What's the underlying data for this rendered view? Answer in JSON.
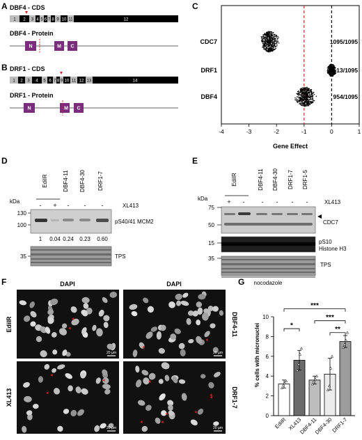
{
  "panel_letters": [
    "A",
    "B",
    "C",
    "D",
    "E",
    "F",
    "G"
  ],
  "panelA": {
    "cds_title": "DBF4 - CDS",
    "protein_title": "DBF4 - Protein",
    "exons": [
      "1",
      "2",
      "3",
      "4",
      "5",
      "6",
      "7",
      "8",
      "9",
      "10",
      "11",
      "12"
    ],
    "domains": [
      "N",
      "M",
      "C"
    ]
  },
  "panelB": {
    "cds_title": "DRF1 - CDS",
    "protein_title": "DRF1 - Protein",
    "exons": [
      "1",
      "2",
      "3",
      "4",
      "5",
      "6",
      "7",
      "8",
      "9",
      "10",
      "11",
      "12",
      "13",
      "14"
    ],
    "domains": [
      "N",
      "M",
      "C"
    ]
  },
  "panelC": {
    "xlabel": "Gene Effect",
    "genes": [
      "CDC7",
      "DRF1",
      "DBF4"
    ],
    "ratios": [
      "1095/1095",
      "13/1095",
      "954/1095"
    ],
    "xticks": [
      "-4",
      "-3",
      "-2",
      "-1",
      "0",
      "1"
    ],
    "centers": [
      -2.25,
      0,
      -0.95
    ],
    "xlim": [
      -4,
      1
    ],
    "red_line": -1,
    "black_line": 0,
    "colors": {
      "red_line": "#d62728",
      "points": "#000000"
    }
  },
  "panelD": {
    "kda": "kDa",
    "lanes": [
      "EdiIR",
      "DBF4-11",
      "DBF4-30",
      "DRF1-7"
    ],
    "xl_label": "XL413",
    "xl_signs": [
      "-",
      "+",
      "-",
      "-",
      "-"
    ],
    "markers_top": [
      "130",
      "100"
    ],
    "marker_tps": "35",
    "band_label": "pS40/41 MCM2",
    "quant": [
      "1",
      "0.04",
      "0.24",
      "0.23",
      "0.60"
    ],
    "tps_label": "TPS"
  },
  "panelE": {
    "kda": "kDa",
    "lanes": [
      "EdiIR",
      "DBF4-11",
      "DBF4-30",
      "DRF1-7",
      "DRF1-5"
    ],
    "xl_label": "XL413",
    "xl_signs": [
      "+",
      "-",
      "-",
      "-",
      "-",
      "-"
    ],
    "markers": [
      "75",
      "50",
      "15",
      "35"
    ],
    "cdc7_label": "CDC7",
    "h3_label_1": "pS10",
    "h3_label_2": "Histone H3",
    "tps_label": "TPS",
    "nocodazole": "nocodazole"
  },
  "panelF": {
    "dapi": "DAPI",
    "images": [
      "EdiIR",
      "DBF4-11",
      "XL413",
      "DRF1-7"
    ],
    "scale": "20 µm"
  },
  "panelG": {
    "ylabel": "% cells with micronuclei",
    "chart_data": {
      "type": "bar",
      "categories": [
        "EdiIR",
        "XL413",
        "DBF4-11",
        "DBF4-30",
        "DRF1-7"
      ],
      "values": [
        3.2,
        5.6,
        3.6,
        4.2,
        7.5
      ],
      "errors": [
        0.4,
        1.0,
        0.4,
        1.6,
        0.6
      ],
      "points": [
        [
          2.8,
          3.1,
          3.3,
          3.5
        ],
        [
          4.6,
          5.2,
          6.2,
          6.8
        ],
        [
          3.2,
          3.5,
          3.7,
          4.0
        ],
        [
          2.6,
          3.0,
          4.8,
          6.0
        ],
        [
          6.9,
          7.2,
          7.6,
          8.4
        ]
      ],
      "colors": [
        "#ffffff",
        "#6b6b6b",
        "#bdbdbd",
        "#ececec",
        "#9c9c9c"
      ],
      "ylim": [
        0,
        10
      ],
      "yticks": [
        "0",
        "2",
        "4",
        "6",
        "8",
        "10"
      ],
      "significance": [
        {
          "from": 0,
          "to": 1,
          "label": "*"
        },
        {
          "from": 0,
          "to": 4,
          "label": "***"
        },
        {
          "from": 2,
          "to": 4,
          "label": "***"
        },
        {
          "from": 3,
          "to": 4,
          "label": "**"
        }
      ]
    }
  }
}
